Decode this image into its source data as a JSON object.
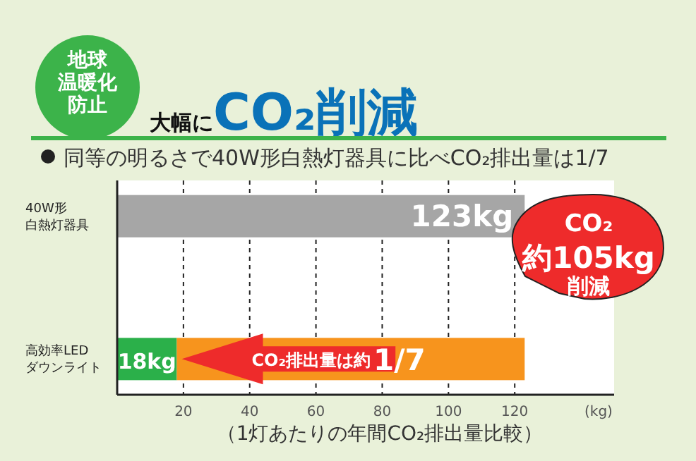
{
  "chart_data": {
    "type": "bar",
    "orientation": "horizontal",
    "stacked": true,
    "title": "大幅にCO₂削減",
    "subtitle": "同等の明るさで40W形白熱灯器具に比べCO₂排出量は1/7",
    "xlabel": "（1灯あたりの年間CO₂排出量比較）",
    "categories": [
      "40W形白熱灯器具",
      "高効率LEDダウンライト"
    ],
    "series": [
      {
        "colors": [
          "#a6a6a6",
          "#2bb04a"
        ],
        "values": [
          123,
          18
        ],
        "value_labels": [
          "123kg",
          "18kg"
        ]
      },
      {
        "color": "#f7941d",
        "values": [
          null,
          105
        ]
      }
    ],
    "xlim": [
      0,
      150
    ],
    "xticks": [
      20,
      40,
      60,
      80,
      100,
      120
    ],
    "grid": "x",
    "annotations": [
      "地球温暖化防止",
      "CO₂約105kg削減",
      "CO₂排出量は約1/7",
      "(kg)"
    ]
  }
}
